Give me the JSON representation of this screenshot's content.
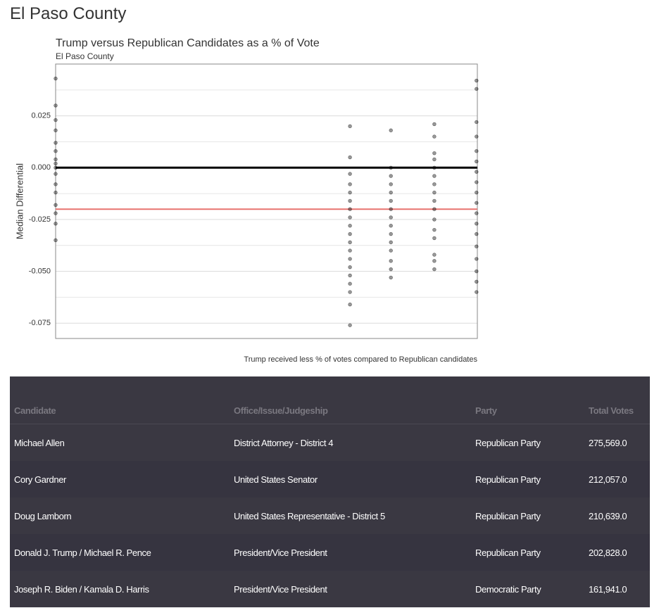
{
  "page_title": "El Paso County",
  "chart_data": {
    "type": "scatter",
    "title": "Trump versus Republican Candidates as a % of Vote",
    "subtitle": "El Paso County",
    "y_label": "Median Differential",
    "caption": "Trump received less % of votes compared to Republican candidates",
    "color": "#000000",
    "xlim": [
      0,
      1
    ],
    "ylim": [
      -0.0824,
      0.05
    ],
    "yticks": [
      0.025,
      {
        "value": 0,
        "label": "0.000"
      },
      -0.025,
      {
        "value": -0.05,
        "label": "-0.050"
      },
      -0.075
    ],
    "grid": true,
    "hlines": [
      {
        "value": 0,
        "color": "#000000"
      },
      {
        "value": -0.02,
        "color": "#e8736f"
      }
    ],
    "x": [
      0,
      0,
      0,
      0,
      0,
      0,
      0,
      0,
      0,
      0,
      0,
      0,
      0,
      0,
      0,
      0,
      0.698,
      0.698,
      0.698,
      0.698,
      0.698,
      0.698,
      0.698,
      0.698,
      0.698,
      0.698,
      0.698,
      0.698,
      0.698,
      0.698,
      0.698,
      0.698,
      0.698,
      0.698,
      0.698,
      0.795,
      0.795,
      0.795,
      0.795,
      0.795,
      0.795,
      0.795,
      0.795,
      0.795,
      0.795,
      0.795,
      0.795,
      0.795,
      0.795,
      0.795,
      0.898,
      0.898,
      0.898,
      0.898,
      0.898,
      0.898,
      0.898,
      0.898,
      0.898,
      0.898,
      0.898,
      0.898,
      0.898,
      0.898,
      0.898,
      0.898,
      0.998,
      0.998,
      0.998,
      0.998,
      0.998,
      0.998,
      0.998,
      0.998,
      0.998,
      0.998,
      0.998,
      0.998,
      0.998,
      0.998,
      0.998,
      0.998,
      0.998,
      0.998
    ],
    "values": [
      0.043,
      0.03,
      0.023,
      0.018,
      0.012,
      0.008,
      0.004,
      0.002,
      0.0,
      -0.003,
      -0.008,
      -0.012,
      -0.018,
      -0.022,
      -0.027,
      -0.035,
      0.02,
      0.005,
      -0.003,
      -0.008,
      -0.012,
      -0.016,
      -0.02,
      -0.024,
      -0.028,
      -0.032,
      -0.036,
      -0.04,
      -0.044,
      -0.048,
      -0.052,
      -0.056,
      -0.06,
      -0.066,
      -0.076,
      0.018,
      0.0,
      -0.004,
      -0.008,
      -0.012,
      -0.016,
      -0.02,
      -0.024,
      -0.028,
      -0.032,
      -0.036,
      -0.04,
      -0.045,
      -0.049,
      -0.053,
      0.021,
      0.015,
      0.007,
      0.004,
      0.0,
      -0.004,
      -0.008,
      -0.012,
      -0.016,
      -0.02,
      -0.025,
      -0.03,
      -0.034,
      -0.042,
      -0.045,
      -0.049,
      0.042,
      0.038,
      0.022,
      0.015,
      0.008,
      0.003,
      -0.002,
      -0.007,
      -0.012,
      -0.017,
      -0.022,
      -0.027,
      -0.032,
      -0.038,
      -0.044,
      -0.05,
      -0.055,
      -0.06
    ]
  },
  "table": {
    "header": [
      "Candidate",
      "Office/Issue/Judgeship",
      "Party",
      "Total Votes"
    ],
    "rows": [
      [
        "Michael Allen",
        "District Attorney - District 4",
        "Republican Party",
        "275,569.0"
      ],
      [
        "Cory Gardner",
        "United States Senator",
        "Republican Party",
        "212,057.0"
      ],
      [
        "Doug Lamborn",
        "United States Representative - District 5",
        "Republican Party",
        "210,639.0"
      ],
      [
        "Donald J. Trump / Michael R. Pence",
        "President/Vice President",
        "Republican Party",
        "202,828.0"
      ],
      [
        "Joseph R. Biden / Kamala D. Harris",
        "President/Vice President",
        "Democratic Party",
        "161,941.0"
      ]
    ]
  }
}
